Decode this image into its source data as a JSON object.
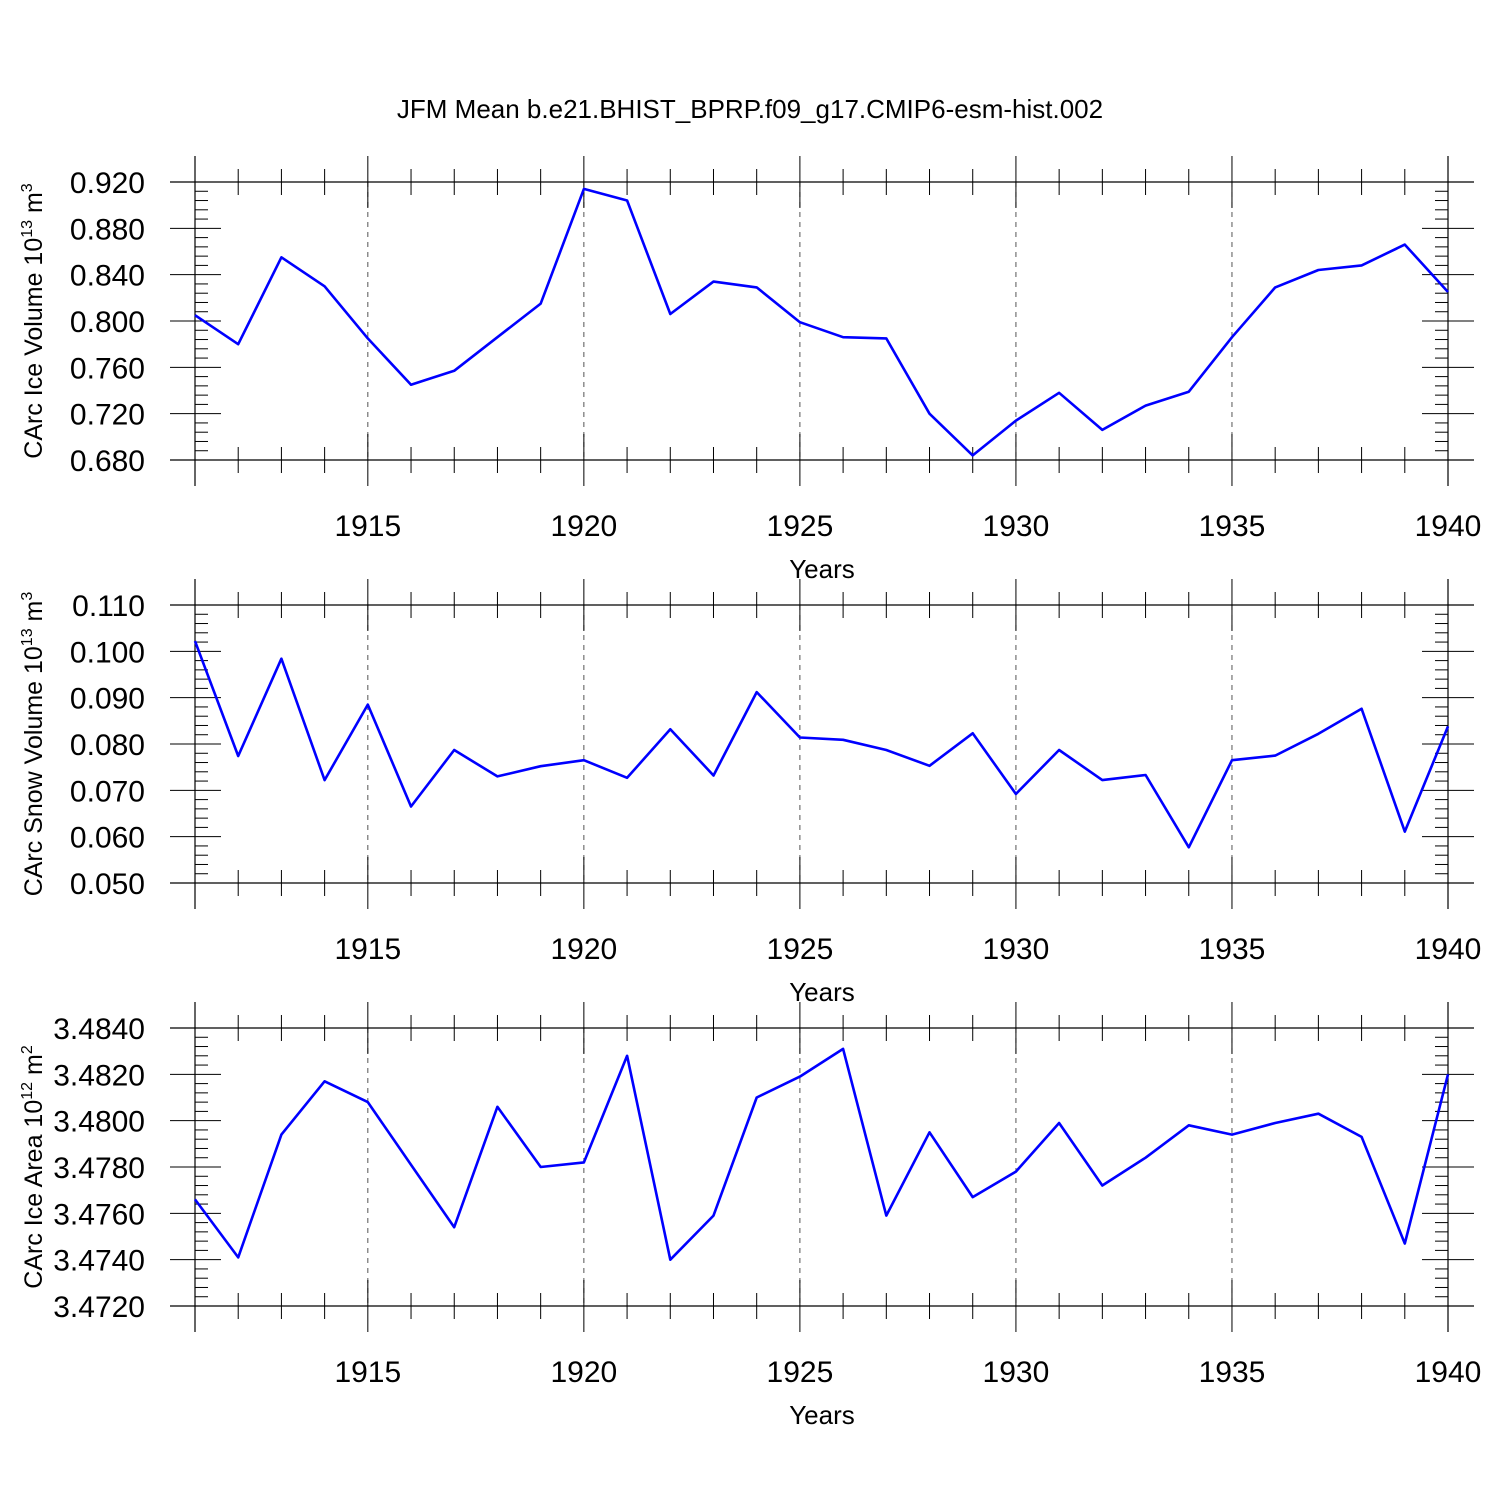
{
  "title": "JFM Mean b.e21.BHIST_BPRP.f09_g17.CMIP6-esm-hist.002",
  "colors": {
    "line": "#0000ff",
    "axis": "#000000",
    "grid": "#555555"
  },
  "chart_data": [
    {
      "type": "line",
      "ylabel": "CArc Ice Volume 10",
      "ylabel_sup": "13",
      "ylabel_unit": " m",
      "ylabel_unit_sup": "3",
      "xlabel": "Years",
      "xlim": [
        1911,
        1940
      ],
      "ylim": [
        0.68,
        0.92
      ],
      "xticks": [
        "1915",
        "1920",
        "1925",
        "1930",
        "1935",
        "1940"
      ],
      "yticks": [
        "0.920",
        "0.880",
        "0.840",
        "0.800",
        "0.760",
        "0.720",
        "0.680"
      ],
      "grid": "dashed vertical lines at major x ticks",
      "x": [
        1911,
        1912,
        1913,
        1914,
        1915,
        1916,
        1917,
        1918,
        1919,
        1920,
        1921,
        1922,
        1923,
        1924,
        1925,
        1926,
        1927,
        1928,
        1929,
        1930,
        1931,
        1932,
        1933,
        1934,
        1935,
        1936,
        1937,
        1938,
        1939,
        1940
      ],
      "values": [
        0.805,
        0.78,
        0.855,
        0.83,
        0.785,
        0.745,
        0.757,
        0.786,
        0.815,
        0.914,
        0.904,
        0.806,
        0.834,
        0.829,
        0.799,
        0.786,
        0.785,
        0.72,
        0.684,
        0.714,
        0.738,
        0.706,
        0.727,
        0.739,
        0.786,
        0.829,
        0.844,
        0.848,
        0.866,
        0.825
      ]
    },
    {
      "type": "line",
      "ylabel": "CArc Snow Volume 10",
      "ylabel_sup": "13",
      "ylabel_unit": " m",
      "ylabel_unit_sup": "3",
      "xlabel": "Years",
      "xlim": [
        1911,
        1940
      ],
      "ylim": [
        0.05,
        0.11
      ],
      "xticks": [
        "1915",
        "1920",
        "1925",
        "1930",
        "1935",
        "1940"
      ],
      "yticks": [
        "0.110",
        "0.100",
        "0.090",
        "0.080",
        "0.070",
        "0.060",
        "0.050"
      ],
      "grid": "dashed vertical lines at major x ticks",
      "x": [
        1911,
        1912,
        1913,
        1914,
        1915,
        1916,
        1917,
        1918,
        1919,
        1920,
        1921,
        1922,
        1923,
        1924,
        1925,
        1926,
        1927,
        1928,
        1929,
        1930,
        1931,
        1932,
        1933,
        1934,
        1935,
        1936,
        1937,
        1938,
        1939,
        1940
      ],
      "values": [
        0.1022,
        0.0774,
        0.0984,
        0.0722,
        0.0885,
        0.0665,
        0.0787,
        0.073,
        0.0752,
        0.0765,
        0.0727,
        0.0832,
        0.0732,
        0.0912,
        0.0814,
        0.0809,
        0.0787,
        0.0753,
        0.0823,
        0.0692,
        0.0787,
        0.0722,
        0.0733,
        0.0577,
        0.0765,
        0.0775,
        0.0822,
        0.0876,
        0.0611,
        0.0838
      ]
    },
    {
      "type": "line",
      "ylabel": "CArc Ice Area 10",
      "ylabel_sup": "12",
      "ylabel_unit": " m",
      "ylabel_unit_sup": "2",
      "xlabel": "Years",
      "xlim": [
        1911,
        1940
      ],
      "ylim": [
        3.472,
        3.484
      ],
      "xticks": [
        "1915",
        "1920",
        "1925",
        "1930",
        "1935",
        "1940"
      ],
      "yticks": [
        "3.4840",
        "3.4820",
        "3.4800",
        "3.4780",
        "3.4760",
        "3.4740",
        "3.4720"
      ],
      "grid": "dashed vertical lines at major x ticks",
      "x": [
        1911,
        1912,
        1913,
        1914,
        1915,
        1916,
        1917,
        1918,
        1919,
        1920,
        1921,
        1922,
        1923,
        1924,
        1925,
        1926,
        1927,
        1928,
        1929,
        1930,
        1931,
        1932,
        1933,
        1934,
        1935,
        1936,
        1937,
        1938,
        1939,
        1940
      ],
      "values": [
        3.4766,
        3.4741,
        3.4794,
        3.4817,
        3.4808,
        3.4781,
        3.4754,
        3.4806,
        3.478,
        3.4782,
        3.4828,
        3.474,
        3.4759,
        3.481,
        3.4819,
        3.4831,
        3.4759,
        3.4795,
        3.4767,
        3.4778,
        3.4799,
        3.4772,
        3.4784,
        3.4798,
        3.4794,
        3.4799,
        3.4803,
        3.4793,
        3.4747,
        3.482
      ]
    }
  ]
}
